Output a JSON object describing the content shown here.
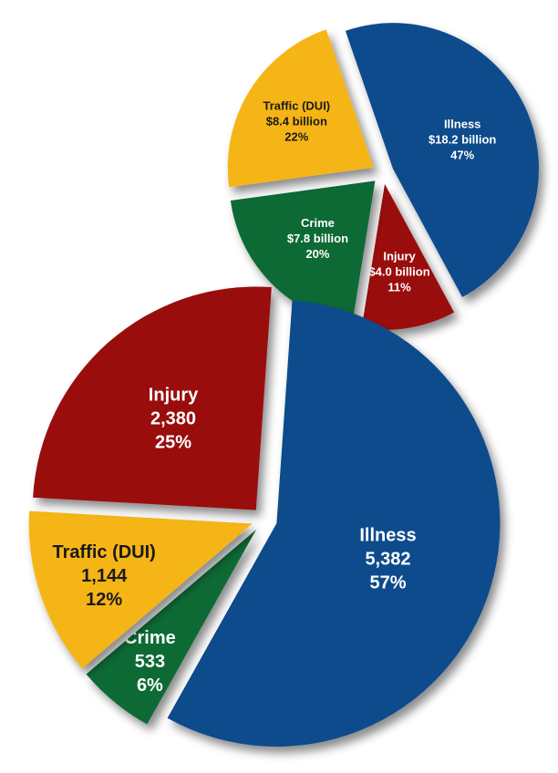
{
  "chart_data": [
    {
      "type": "pie",
      "title": "",
      "units": "cost",
      "slices": [
        {
          "name": "Illness",
          "amount": "$18.2 billion",
          "value": 18.2,
          "percent": "47%",
          "color": "#0a4b8c"
        },
        {
          "name": "Injury",
          "amount": "$4.0 billion",
          "value": 4.0,
          "percent": "11%",
          "color": "#9a0b10"
        },
        {
          "name": "Crime",
          "amount": "$7.8 billion",
          "value": 7.8,
          "percent": "20%",
          "color": "#0d6b36"
        },
        {
          "name": "Traffic (DUI)",
          "amount": "$8.4 billion",
          "value": 8.4,
          "percent": "22%",
          "color": "#f6b514"
        }
      ]
    },
    {
      "type": "pie",
      "title": "",
      "units": "count",
      "slices": [
        {
          "name": "Illness",
          "amount": "5,382",
          "value": 5382,
          "percent": "57%",
          "color": "#0a4b8c"
        },
        {
          "name": "Crime",
          "amount": "533",
          "value": 533,
          "percent": "6%",
          "color": "#0d6b36"
        },
        {
          "name": "Traffic (DUI)",
          "amount": "1,144",
          "value": 1144,
          "percent": "12%",
          "color": "#f6b514"
        },
        {
          "name": "Injury",
          "amount": "2,380",
          "value": 2380,
          "percent": "25%",
          "color": "#9a0b10"
        }
      ]
    }
  ]
}
